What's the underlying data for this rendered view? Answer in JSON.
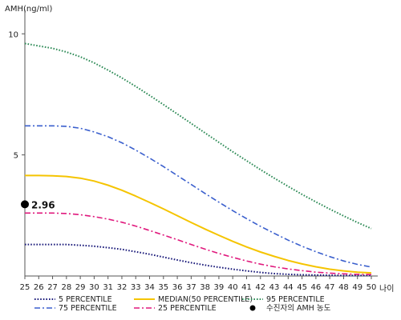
{
  "chart_data": {
    "type": "line",
    "ylabel": "AMH(ng/ml)",
    "xlabel": "나이",
    "x": [
      25,
      26,
      27,
      28,
      29,
      30,
      31,
      32,
      33,
      34,
      35,
      36,
      37,
      38,
      39,
      40,
      41,
      42,
      43,
      44,
      45,
      46,
      47,
      48,
      49,
      50
    ],
    "xlim": [
      25,
      50
    ],
    "ylim": [
      0,
      11
    ],
    "yticks": [
      5,
      10
    ],
    "series": [
      {
        "name": "5 PERCENTILE",
        "color": "#1a1a7a",
        "style": "dotted",
        "values": [
          1.3,
          1.3,
          1.3,
          1.3,
          1.27,
          1.23,
          1.17,
          1.1,
          1.0,
          0.9,
          0.78,
          0.66,
          0.55,
          0.45,
          0.36,
          0.28,
          0.21,
          0.15,
          0.1,
          0.07,
          0.05,
          0.04,
          0.03,
          0.02,
          0.02,
          0.02
        ]
      },
      {
        "name": "25 PERCENTILE",
        "color": "#e0197d",
        "style": "dashdot",
        "values": [
          2.6,
          2.6,
          2.6,
          2.58,
          2.53,
          2.45,
          2.35,
          2.22,
          2.06,
          1.88,
          1.69,
          1.5,
          1.3,
          1.11,
          0.93,
          0.77,
          0.62,
          0.49,
          0.38,
          0.29,
          0.22,
          0.16,
          0.12,
          0.09,
          0.07,
          0.06
        ]
      },
      {
        "name": "MEDIAN(50 PERCENTILE)",
        "color": "#f5c400",
        "style": "solid",
        "values": [
          4.15,
          4.15,
          4.14,
          4.11,
          4.04,
          3.92,
          3.75,
          3.54,
          3.3,
          3.04,
          2.77,
          2.49,
          2.21,
          1.94,
          1.68,
          1.43,
          1.2,
          0.99,
          0.81,
          0.64,
          0.5,
          0.38,
          0.28,
          0.21,
          0.16,
          0.13
        ]
      },
      {
        "name": "75 PERCENTILE",
        "color": "#3a5fcd",
        "style": "dashdot",
        "values": [
          6.2,
          6.2,
          6.2,
          6.18,
          6.1,
          5.95,
          5.75,
          5.5,
          5.2,
          4.87,
          4.52,
          4.15,
          3.78,
          3.41,
          3.05,
          2.7,
          2.37,
          2.05,
          1.76,
          1.48,
          1.23,
          1.0,
          0.8,
          0.62,
          0.48,
          0.37
        ]
      },
      {
        "name": "95 PERCENTILE",
        "color": "#2e8b57",
        "style": "dotted",
        "values": [
          9.6,
          9.5,
          9.4,
          9.25,
          9.05,
          8.8,
          8.5,
          8.18,
          7.83,
          7.46,
          7.08,
          6.69,
          6.3,
          5.91,
          5.52,
          5.13,
          4.76,
          4.39,
          4.04,
          3.7,
          3.37,
          3.06,
          2.76,
          2.48,
          2.21,
          1.96
        ]
      }
    ],
    "marker": {
      "legend_label": "수진자의 AMH 농도",
      "x": 25,
      "y": 2.96,
      "label": "2.96",
      "color": "#000000"
    },
    "legend_position": "bottom",
    "grid": false
  }
}
